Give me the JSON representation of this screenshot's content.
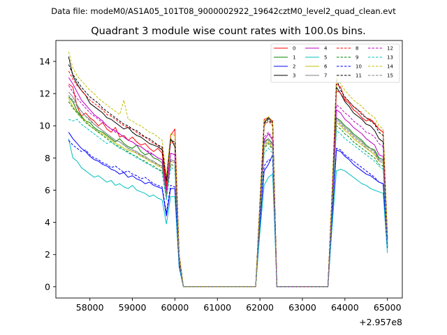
{
  "chart_data": {
    "type": "line",
    "suptitle": "Data file: modeM0/AS1A05_101T08_9000002922_19642cztM0_level2_quad_clean.evt",
    "title": "Quadrant 3 module wise count rates with 100.0s bins.",
    "xlabel": "",
    "ylabel": "",
    "x_offset_label": "+2.957e8",
    "xlim": [
      57200,
      65350
    ],
    "ylim": [
      -0.7,
      15.3
    ],
    "x_ticks": [
      58000,
      59000,
      60000,
      61000,
      62000,
      63000,
      64000,
      65000
    ],
    "y_ticks": [
      0,
      2,
      4,
      6,
      8,
      10,
      12,
      14
    ],
    "x_tick_labels": [
      "58000",
      "59000",
      "60000",
      "61000",
      "62000",
      "63000",
      "64000",
      "65000"
    ],
    "y_tick_labels": [
      "0",
      "2",
      "4",
      "6",
      "8",
      "10",
      "12",
      "14"
    ],
    "legend_position": "top-right",
    "x": [
      57500,
      57600,
      57700,
      57800,
      57900,
      58000,
      58100,
      58200,
      58300,
      58400,
      58500,
      58600,
      58700,
      58800,
      58900,
      59000,
      59100,
      59200,
      59300,
      59400,
      59500,
      59600,
      59700,
      59800,
      59900,
      60000,
      60100,
      60200,
      60400,
      60600,
      60800,
      61000,
      61200,
      61400,
      61600,
      61800,
      61900,
      62000,
      62100,
      62200,
      62300,
      62400,
      62500,
      62700,
      62900,
      63100,
      63300,
      63500,
      63600,
      63700,
      63800,
      63900,
      64000,
      64100,
      64200,
      64300,
      64400,
      64500,
      64600,
      64700,
      64800,
      64900,
      65000
    ],
    "series": [
      {
        "name": "0",
        "color": "#ff0000",
        "style": "solid",
        "values": [
          12.6,
          12.4,
          11.2,
          10.6,
          10.8,
          10.5,
          10.3,
          10.0,
          10.2,
          9.8,
          9.6,
          9.9,
          9.3,
          9.4,
          9.1,
          9.3,
          9.0,
          8.8,
          8.9,
          8.6,
          8.4,
          8.6,
          8.3,
          6.2,
          9.4,
          9.8,
          2.0,
          0.0,
          0.0,
          0.0,
          0.0,
          0.0,
          0.0,
          0.0,
          0.0,
          0.0,
          0.0,
          5.2,
          10.4,
          10.5,
          10.3,
          0.0,
          0.0,
          0.0,
          0.0,
          0.0,
          0.0,
          0.0,
          0.0,
          5.8,
          12.6,
          12.4,
          11.6,
          11.4,
          11.0,
          10.8,
          10.5,
          10.3,
          10.4,
          10.1,
          9.8,
          9.6,
          3.0
        ]
      },
      {
        "name": "1",
        "color": "#008000",
        "style": "solid",
        "values": [
          11.8,
          11.5,
          10.9,
          10.6,
          10.3,
          10.2,
          9.9,
          9.7,
          9.6,
          9.4,
          9.2,
          9.0,
          9.2,
          8.9,
          8.7,
          8.6,
          8.8,
          8.4,
          8.2,
          8.3,
          8.0,
          7.9,
          7.7,
          5.8,
          7.9,
          7.8,
          1.6,
          0.0,
          0.0,
          0.0,
          0.0,
          0.0,
          0.0,
          0.0,
          0.0,
          0.0,
          0.0,
          4.6,
          9.0,
          9.2,
          8.9,
          0.0,
          0.0,
          0.0,
          0.0,
          0.0,
          0.0,
          0.0,
          0.0,
          5.2,
          10.5,
          10.3,
          10.0,
          9.8,
          9.5,
          9.3,
          9.1,
          8.8,
          8.6,
          8.5,
          8.0,
          7.9,
          2.6
        ]
      },
      {
        "name": "2",
        "color": "#0000ff",
        "style": "solid",
        "values": [
          9.6,
          9.2,
          8.9,
          8.6,
          8.4,
          8.1,
          7.9,
          7.8,
          7.6,
          7.5,
          7.3,
          7.2,
          7.0,
          7.1,
          6.8,
          6.9,
          6.7,
          6.6,
          6.4,
          6.5,
          6.3,
          6.2,
          6.1,
          4.4,
          6.1,
          6.1,
          1.3,
          0.0,
          0.0,
          0.0,
          0.0,
          0.0,
          0.0,
          0.0,
          0.0,
          0.0,
          0.0,
          3.8,
          7.2,
          7.6,
          8.2,
          0.0,
          0.0,
          0.0,
          0.0,
          0.0,
          0.0,
          0.0,
          0.0,
          4.2,
          8.5,
          8.4,
          8.1,
          7.9,
          7.6,
          7.4,
          7.2,
          7.0,
          6.9,
          6.7,
          6.5,
          6.4,
          2.5
        ]
      },
      {
        "name": "3",
        "color": "#000000",
        "style": "solid",
        "values": [
          14.3,
          13.1,
          12.6,
          12.2,
          11.9,
          11.4,
          11.2,
          11.0,
          10.8,
          10.5,
          10.4,
          10.2,
          10.0,
          9.8,
          9.9,
          9.6,
          9.4,
          9.3,
          9.1,
          8.9,
          8.8,
          8.7,
          8.5,
          6.6,
          9.2,
          8.7,
          1.9,
          0.0,
          0.0,
          0.0,
          0.0,
          0.0,
          0.0,
          0.0,
          0.0,
          0.0,
          0.0,
          5.0,
          10.2,
          10.5,
          10.2,
          0.0,
          0.0,
          0.0,
          0.0,
          0.0,
          0.0,
          0.0,
          0.0,
          5.9,
          12.4,
          12.0,
          11.5,
          11.2,
          10.8,
          10.6,
          10.4,
          10.1,
          10.0,
          9.7,
          9.2,
          9.0,
          3.0
        ]
      },
      {
        "name": "4",
        "color": "#bf00bf",
        "style": "solid",
        "values": [
          13.0,
          12.6,
          12.1,
          11.6,
          11.3,
          11.0,
          10.7,
          10.5,
          10.3,
          10.0,
          9.8,
          9.7,
          9.5,
          9.3,
          9.1,
          9.0,
          8.8,
          8.7,
          8.5,
          8.3,
          8.2,
          8.0,
          7.9,
          5.9,
          8.3,
          8.2,
          1.7,
          0.0,
          0.0,
          0.0,
          0.0,
          0.0,
          0.0,
          0.0,
          0.0,
          0.0,
          0.0,
          4.8,
          9.1,
          9.5,
          9.1,
          0.0,
          0.0,
          0.0,
          0.0,
          0.0,
          0.0,
          0.0,
          0.0,
          5.4,
          11.0,
          10.8,
          10.4,
          10.2,
          9.9,
          9.7,
          9.5,
          9.2,
          9.0,
          8.8,
          8.2,
          8.1,
          2.8
        ]
      },
      {
        "name": "5",
        "color": "#00bfbf",
        "style": "solid",
        "values": [
          9.2,
          8.0,
          7.8,
          7.4,
          7.2,
          7.0,
          6.8,
          6.9,
          6.7,
          6.5,
          6.6,
          6.3,
          6.4,
          6.2,
          6.1,
          6.3,
          6.0,
          5.9,
          5.8,
          5.6,
          5.7,
          5.5,
          5.4,
          3.9,
          5.6,
          5.6,
          1.2,
          0.0,
          0.0,
          0.0,
          0.0,
          0.0,
          0.0,
          0.0,
          0.0,
          0.0,
          0.0,
          3.4,
          6.3,
          6.8,
          7.0,
          0.0,
          0.0,
          0.0,
          0.0,
          0.0,
          0.0,
          0.0,
          0.0,
          3.8,
          7.2,
          7.3,
          7.2,
          7.0,
          6.8,
          6.6,
          6.4,
          6.3,
          6.1,
          6.0,
          5.9,
          5.8,
          2.1
        ]
      },
      {
        "name": "6",
        "color": "#bfbf00",
        "style": "solid",
        "values": [
          11.7,
          11.2,
          10.8,
          10.5,
          10.3,
          10.0,
          9.8,
          9.6,
          9.5,
          9.3,
          9.1,
          8.9,
          8.8,
          8.6,
          8.5,
          8.4,
          8.3,
          8.1,
          8.0,
          7.8,
          7.7,
          7.5,
          7.4,
          5.6,
          7.8,
          7.7,
          1.6,
          0.0,
          0.0,
          0.0,
          0.0,
          0.0,
          0.0,
          0.0,
          0.0,
          0.0,
          0.0,
          4.5,
          8.7,
          9.0,
          8.6,
          0.0,
          0.0,
          0.0,
          0.0,
          0.0,
          0.0,
          0.0,
          0.0,
          5.0,
          10.2,
          10.0,
          9.7,
          9.5,
          9.2,
          9.0,
          8.8,
          8.6,
          8.4,
          8.2,
          7.8,
          7.7,
          2.6
        ]
      },
      {
        "name": "7",
        "color": "#808080",
        "style": "solid",
        "values": [
          12.1,
          11.8,
          11.3,
          10.9,
          10.6,
          10.4,
          10.1,
          9.9,
          9.7,
          9.5,
          9.3,
          9.1,
          9.0,
          8.8,
          8.6,
          8.5,
          8.4,
          8.2,
          8.1,
          7.9,
          7.8,
          7.6,
          7.5,
          5.7,
          7.9,
          7.8,
          1.6,
          0.0,
          0.0,
          0.0,
          0.0,
          0.0,
          0.0,
          0.0,
          0.0,
          0.0,
          0.0,
          4.6,
          8.9,
          9.2,
          8.8,
          0.0,
          0.0,
          0.0,
          0.0,
          0.0,
          0.0,
          0.0,
          0.0,
          5.1,
          10.4,
          10.2,
          9.9,
          9.7,
          9.4,
          9.2,
          9.0,
          8.7,
          8.6,
          8.4,
          7.9,
          7.8,
          2.7
        ]
      },
      {
        "name": "8",
        "color": "#ff0000",
        "style": "dashed",
        "values": [
          13.4,
          12.9,
          12.5,
          12.2,
          11.9,
          11.6,
          11.4,
          11.2,
          11.0,
          10.7,
          10.6,
          10.4,
          10.2,
          10.0,
          9.9,
          9.8,
          9.6,
          9.4,
          9.3,
          9.1,
          8.9,
          8.8,
          8.6,
          6.5,
          9.0,
          8.9,
          1.9,
          0.0,
          0.0,
          0.0,
          0.0,
          0.0,
          0.0,
          0.0,
          0.0,
          0.0,
          0.0,
          5.2,
          10.0,
          10.3,
          10.0,
          0.0,
          0.0,
          0.0,
          0.0,
          0.0,
          0.0,
          0.0,
          0.0,
          5.9,
          12.2,
          12.0,
          11.7,
          11.5,
          11.2,
          11.0,
          10.8,
          10.5,
          10.4,
          10.2,
          9.8,
          9.6,
          3.0
        ]
      },
      {
        "name": "9",
        "color": "#008000",
        "style": "dashed",
        "values": [
          11.5,
          11.1,
          10.8,
          10.5,
          10.2,
          10.0,
          9.8,
          9.6,
          9.4,
          9.2,
          9.0,
          8.8,
          8.7,
          8.5,
          8.4,
          8.2,
          8.1,
          7.9,
          7.8,
          7.6,
          7.5,
          7.3,
          7.2,
          5.5,
          7.6,
          7.5,
          1.6,
          0.0,
          0.0,
          0.0,
          0.0,
          0.0,
          0.0,
          0.0,
          0.0,
          0.0,
          0.0,
          4.4,
          8.6,
          8.9,
          8.5,
          0.0,
          0.0,
          0.0,
          0.0,
          0.0,
          0.0,
          0.0,
          0.0,
          4.9,
          10.0,
          9.8,
          9.5,
          9.3,
          9.0,
          8.8,
          8.6,
          8.4,
          8.2,
          8.0,
          7.6,
          7.5,
          2.5
        ]
      },
      {
        "name": "10",
        "color": "#0000ff",
        "style": "dashed",
        "values": [
          9.1,
          8.8,
          8.6,
          8.4,
          8.5,
          8.2,
          8.0,
          7.9,
          7.7,
          7.6,
          7.4,
          7.5,
          7.3,
          7.1,
          7.2,
          7.0,
          6.9,
          6.7,
          6.8,
          6.6,
          6.4,
          6.3,
          6.2,
          4.6,
          6.3,
          6.2,
          1.3,
          0.0,
          0.0,
          0.0,
          0.0,
          0.0,
          0.0,
          0.0,
          0.0,
          0.0,
          0.0,
          3.9,
          7.5,
          7.9,
          7.8,
          0.0,
          0.0,
          0.0,
          0.0,
          0.0,
          0.0,
          0.0,
          0.0,
          4.3,
          8.6,
          8.5,
          8.2,
          8.0,
          7.8,
          7.6,
          7.4,
          7.2,
          7.0,
          6.8,
          6.5,
          6.4,
          2.4
        ]
      },
      {
        "name": "11",
        "color": "#000000",
        "style": "dashed",
        "values": [
          13.8,
          13.2,
          12.8,
          12.4,
          12.1,
          11.8,
          11.6,
          11.4,
          11.1,
          10.9,
          10.7,
          10.5,
          10.3,
          10.1,
          10.0,
          9.8,
          9.7,
          9.5,
          9.3,
          9.2,
          9.0,
          8.8,
          8.7,
          6.6,
          9.1,
          9.0,
          1.9,
          0.0,
          0.0,
          0.0,
          0.0,
          0.0,
          0.0,
          0.0,
          0.0,
          0.0,
          0.0,
          5.1,
          10.1,
          10.4,
          10.1,
          0.0,
          0.0,
          0.0,
          0.0,
          0.0,
          0.0,
          0.0,
          0.0,
          5.8,
          12.9,
          12.2,
          11.8,
          11.5,
          11.2,
          11.0,
          10.7,
          10.5,
          10.3,
          10.1,
          9.6,
          9.4,
          3.1
        ]
      },
      {
        "name": "12",
        "color": "#bf00bf",
        "style": "dashed",
        "values": [
          12.5,
          12.1,
          11.7,
          11.4,
          11.1,
          10.8,
          10.6,
          10.4,
          10.2,
          10.0,
          9.8,
          9.6,
          9.5,
          9.3,
          9.1,
          9.0,
          8.8,
          8.7,
          8.5,
          8.4,
          8.2,
          8.0,
          7.9,
          6.0,
          8.3,
          8.2,
          1.8,
          0.0,
          0.0,
          0.0,
          0.0,
          0.0,
          0.0,
          0.0,
          0.0,
          0.0,
          0.0,
          4.8,
          9.3,
          9.6,
          9.2,
          0.0,
          0.0,
          0.0,
          0.0,
          0.0,
          0.0,
          0.0,
          0.0,
          5.5,
          11.3,
          11.1,
          10.8,
          10.6,
          10.3,
          10.1,
          9.9,
          9.6,
          9.5,
          9.3,
          8.9,
          8.7,
          2.9
        ]
      },
      {
        "name": "13",
        "color": "#00bfbf",
        "style": "dashed",
        "values": [
          10.4,
          10.3,
          10.4,
          10.1,
          9.9,
          9.7,
          9.5,
          9.3,
          9.1,
          8.9,
          9.0,
          8.8,
          8.6,
          8.5,
          8.3,
          8.2,
          8.0,
          7.9,
          7.7,
          7.6,
          7.4,
          7.3,
          7.1,
          5.4,
          7.4,
          7.3,
          1.5,
          0.0,
          0.0,
          0.0,
          0.0,
          0.0,
          0.0,
          0.0,
          0.0,
          0.0,
          0.0,
          4.3,
          8.3,
          8.6,
          8.3,
          0.0,
          0.0,
          0.0,
          0.0,
          0.0,
          0.0,
          0.0,
          0.0,
          4.8,
          9.7,
          9.5,
          9.2,
          9.0,
          8.8,
          8.6,
          8.4,
          8.2,
          8.0,
          7.8,
          7.5,
          7.3,
          2.4
        ]
      },
      {
        "name": "14",
        "color": "#bfbf00",
        "style": "dashed",
        "values": [
          14.6,
          13.6,
          13.1,
          12.8,
          12.5,
          12.2,
          12.0,
          11.7,
          11.5,
          11.3,
          11.1,
          10.9,
          10.7,
          11.6,
          10.4,
          10.3,
          10.1,
          10.0,
          9.8,
          9.6,
          9.5,
          9.3,
          9.1,
          6.9,
          9.5,
          9.4,
          2.0,
          0.0,
          0.0,
          0.0,
          0.0,
          0.0,
          0.0,
          0.0,
          0.0,
          0.0,
          0.0,
          5.3,
          10.3,
          10.6,
          10.2,
          0.0,
          0.0,
          0.0,
          0.0,
          0.0,
          0.0,
          0.0,
          0.0,
          6.1,
          13.0,
          12.6,
          12.2,
          11.9,
          11.6,
          11.4,
          11.2,
          10.9,
          10.7,
          10.5,
          10.0,
          9.8,
          3.2
        ]
      },
      {
        "name": "15",
        "color": "#808080",
        "style": "dashed",
        "values": [
          11.9,
          11.6,
          11.2,
          10.9,
          10.6,
          10.3,
          10.1,
          9.9,
          9.7,
          9.5,
          9.3,
          9.1,
          9.0,
          8.8,
          8.6,
          8.5,
          8.3,
          8.2,
          8.0,
          7.9,
          7.7,
          7.6,
          7.4,
          5.6,
          7.8,
          7.7,
          1.6,
          0.0,
          0.0,
          0.0,
          0.0,
          0.0,
          0.0,
          0.0,
          0.0,
          0.0,
          0.0,
          4.5,
          8.8,
          9.1,
          8.7,
          0.0,
          0.0,
          0.0,
          0.0,
          0.0,
          0.0,
          0.0,
          0.0,
          5.0,
          10.3,
          10.1,
          9.8,
          9.6,
          9.3,
          9.1,
          8.9,
          8.6,
          8.5,
          8.3,
          7.8,
          7.7,
          2.6
        ]
      }
    ]
  }
}
